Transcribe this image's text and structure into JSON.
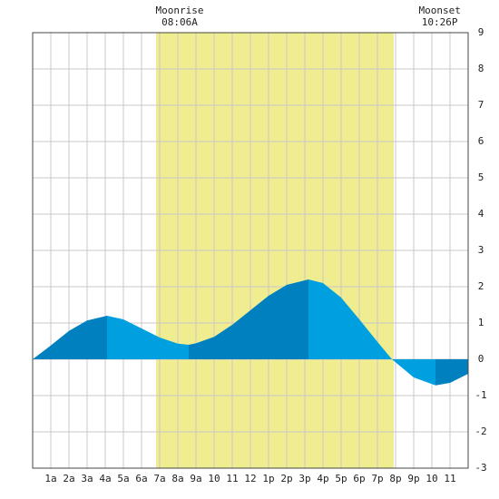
{
  "chart_data": {
    "type": "area",
    "x": [
      0,
      1,
      2,
      3,
      4.1,
      5,
      6,
      7,
      8,
      8.6,
      9,
      10,
      11,
      12,
      13,
      14,
      15.2,
      16,
      17,
      18,
      19,
      19.8,
      21,
      22.2,
      23,
      24
    ],
    "values": [
      0,
      0.38,
      0.78,
      1.07,
      1.2,
      1.1,
      0.85,
      0.6,
      0.43,
      0.4,
      0.44,
      0.62,
      0.95,
      1.35,
      1.75,
      2.05,
      2.2,
      2.1,
      1.7,
      1.1,
      0.48,
      0,
      -0.5,
      -0.72,
      -0.65,
      -0.4
    ],
    "rising_color": "#0080bf",
    "falling_color": "#00a0e0",
    "daylight": [
      6.8,
      19.9
    ],
    "daylight_color": "#f0ec90",
    "xlim": [
      0,
      24
    ],
    "ylim": [
      -3,
      9
    ],
    "xticks": [
      {
        "value": 1,
        "label": "1a"
      },
      {
        "value": 2,
        "label": "2a"
      },
      {
        "value": 3,
        "label": "3a"
      },
      {
        "value": 4,
        "label": "4a"
      },
      {
        "value": 5,
        "label": "5a"
      },
      {
        "value": 6,
        "label": "6a"
      },
      {
        "value": 7,
        "label": "7a"
      },
      {
        "value": 8,
        "label": "8a"
      },
      {
        "value": 9,
        "label": "9a"
      },
      10,
      11,
      12,
      {
        "value": 13,
        "label": "1p"
      },
      {
        "value": 14,
        "label": "2p"
      },
      {
        "value": 15,
        "label": "3p"
      },
      {
        "value": 16,
        "label": "4p"
      },
      {
        "value": 17,
        "label": "5p"
      },
      {
        "value": 18,
        "label": "6p"
      },
      {
        "value": 19,
        "label": "7p"
      },
      {
        "value": 20,
        "label": "8p"
      },
      {
        "value": 21,
        "label": "9p"
      },
      {
        "value": 22,
        "label": "10"
      },
      {
        "value": 23,
        "label": "11"
      }
    ],
    "yticks": [
      -3,
      -2,
      -1,
      0,
      1,
      2,
      3,
      4,
      5,
      6,
      7,
      8,
      9
    ],
    "grid": true,
    "annotations": [
      {
        "x": 8.1,
        "label": "Moonrise",
        "time": "08:06A"
      },
      {
        "x": 22.433,
        "label": "Moonset",
        "time": "10:26P"
      }
    ]
  }
}
